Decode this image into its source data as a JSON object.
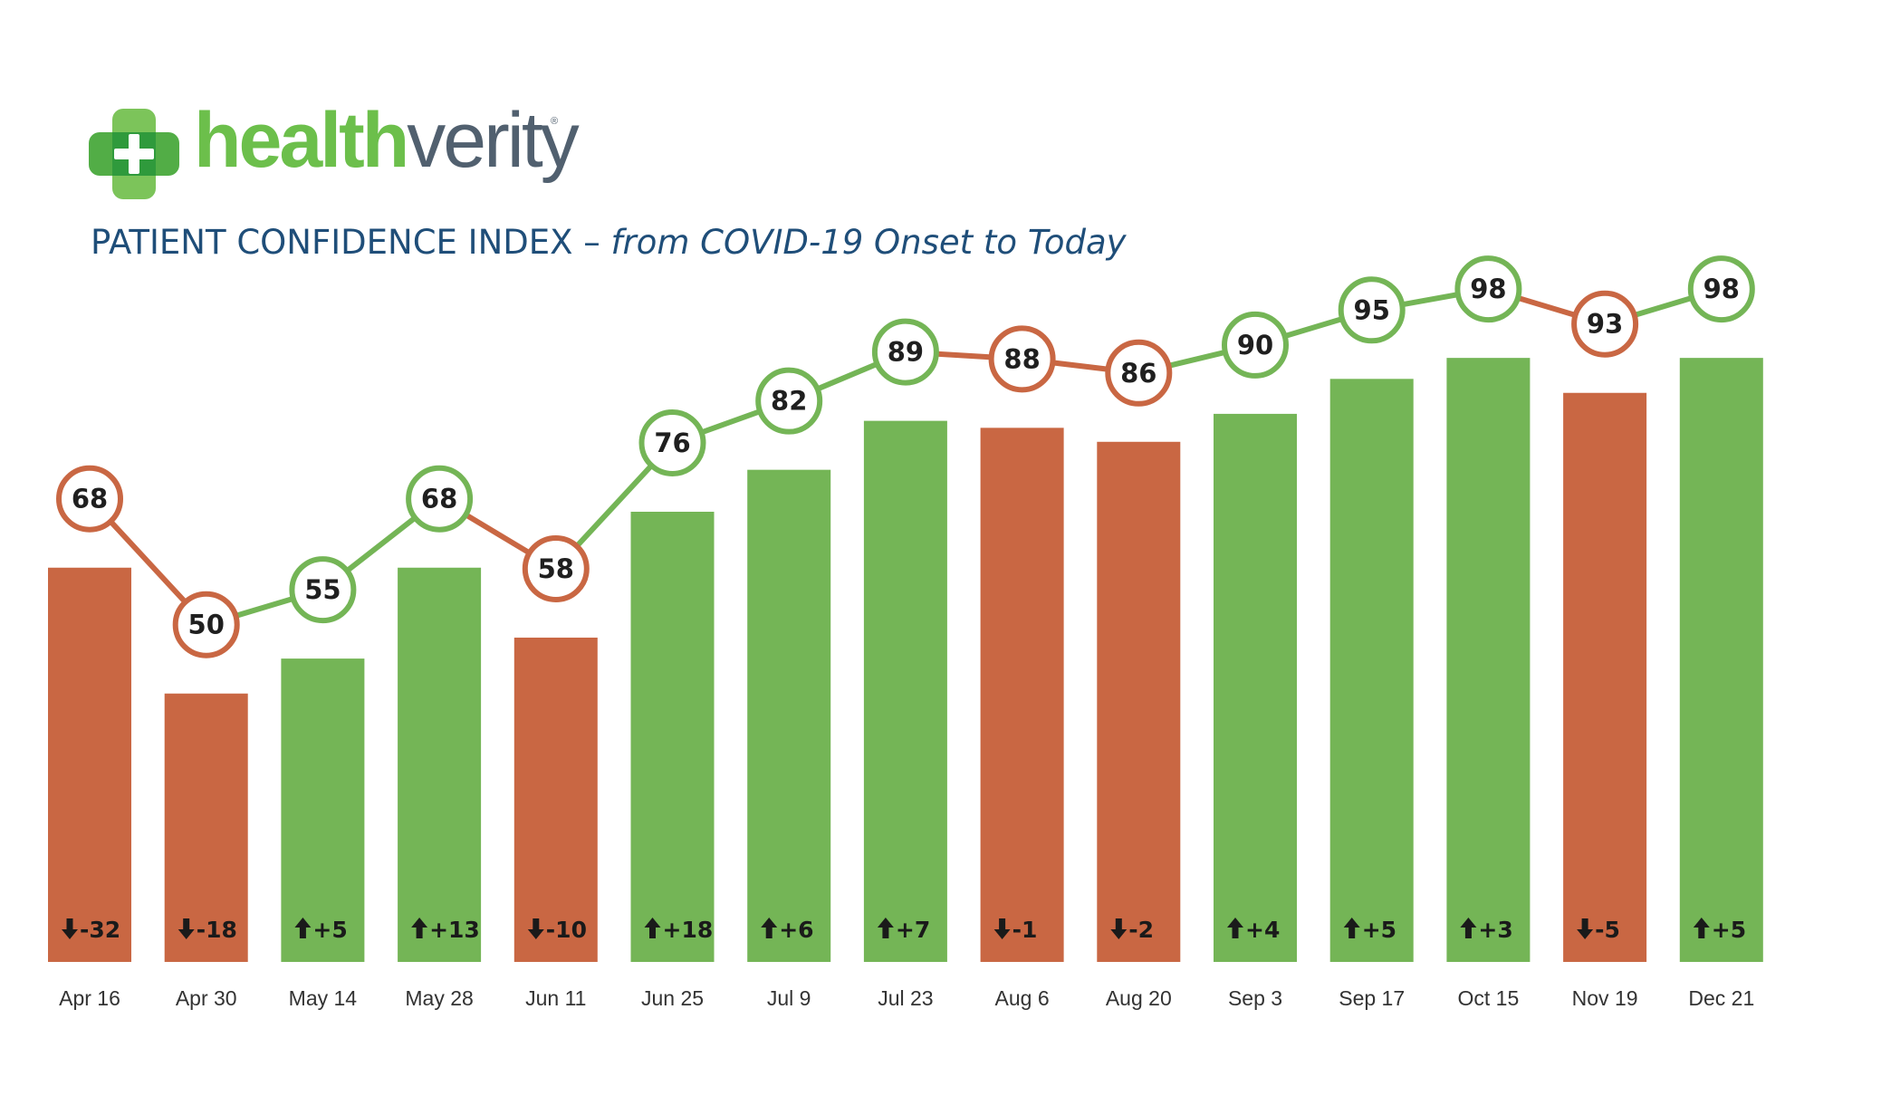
{
  "brand": {
    "name_part1": "health",
    "name_part2": "verity",
    "registered": "®",
    "green": "#6cbf4b",
    "gray": "#51606f"
  },
  "title": {
    "main": "PATIENT CONFIDENCE INDEX – ",
    "sub": "from COVID-19 Onset to Today"
  },
  "colors": {
    "up": "#74b556",
    "down": "#c96743"
  },
  "chart_data": {
    "type": "bar",
    "title": "PATIENT CONFIDENCE INDEX – from COVID-19 Onset to Today",
    "categories": [
      "Apr 16",
      "Apr 30",
      "May 14",
      "May 28",
      "Jun 11",
      "Jun 25",
      "Jul 9",
      "Jul 23",
      "Aug 6",
      "Aug 20",
      "Sep 3",
      "Sep 17",
      "Oct 15",
      "Nov 19",
      "Dec 21"
    ],
    "values": [
      68,
      50,
      55,
      68,
      58,
      76,
      82,
      89,
      88,
      86,
      90,
      95,
      98,
      93,
      98
    ],
    "changes": [
      "-32",
      "-18",
      "+5",
      "+13",
      "-10",
      "+18",
      "+6",
      "+7",
      "-1",
      "-2",
      "+4",
      "+5",
      "+3",
      "-5",
      "+5"
    ],
    "direction": [
      "down",
      "down",
      "up",
      "up",
      "down",
      "up",
      "up",
      "up",
      "down",
      "down",
      "up",
      "up",
      "up",
      "down",
      "up"
    ],
    "overlay": "line with circular value markers",
    "grid": false,
    "legend": "none"
  }
}
